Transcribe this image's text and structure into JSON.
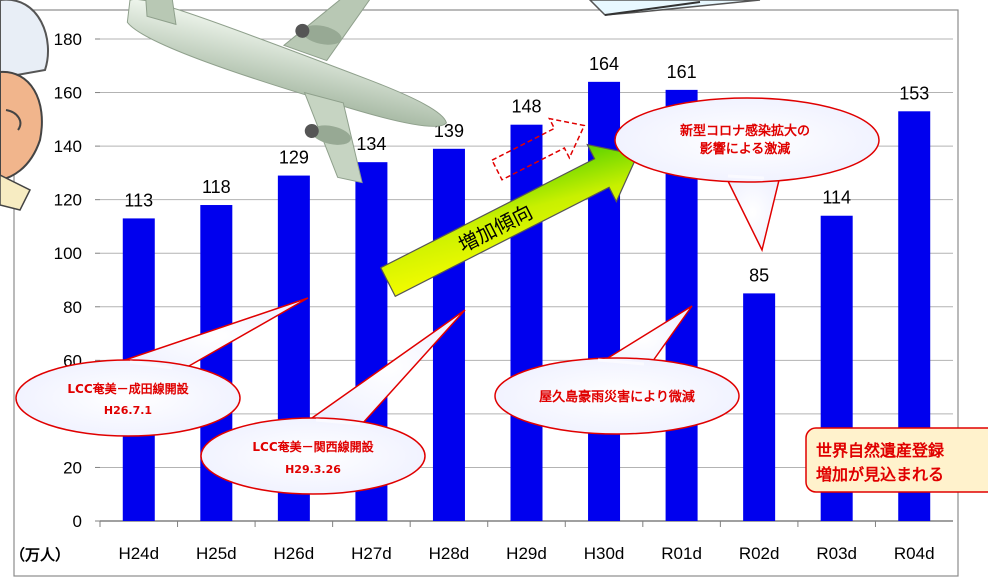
{
  "chart_data": {
    "type": "bar",
    "categories": [
      "H24d",
      "H25d",
      "H26d",
      "H27d",
      "H28d",
      "H29d",
      "H30d",
      "R01d",
      "R02d",
      "R03d",
      "R04d"
    ],
    "values": [
      113,
      118,
      129,
      134,
      139,
      148,
      164,
      161,
      85,
      114,
      153
    ],
    "ylim": [
      0,
      180
    ],
    "yticks": [
      "0",
      "20",
      "40",
      "60",
      "80",
      "100",
      "120",
      "140",
      "160",
      "180"
    ],
    "unit_label": "（万人）",
    "bar_color": "#0000ee",
    "grid": true
  },
  "annotations": {
    "trend_arrow": "増加傾向",
    "covid_line1": "新型コロナ感染拡大の",
    "covid_line2": "影響による激減",
    "yakushima": "屋久島豪雨災害により微減",
    "lcc_narita_line1": "LCC奄美－成田線開設",
    "lcc_narita_line2": "H26.7.1",
    "lcc_kansai_line1": "LCC奄美－関西線開設",
    "lcc_kansai_line2": "H29.3.26",
    "heritage_line1": "世界自然遺産登録",
    "heritage_line2": "増加が見込まれる"
  },
  "colors": {
    "callout_text": "#e00000",
    "callout_border": "#e00000",
    "arrow_fill": "#ffff00",
    "arrow_gradient_end": "#44cc00",
    "heritage_fill": "#fff2cc"
  }
}
